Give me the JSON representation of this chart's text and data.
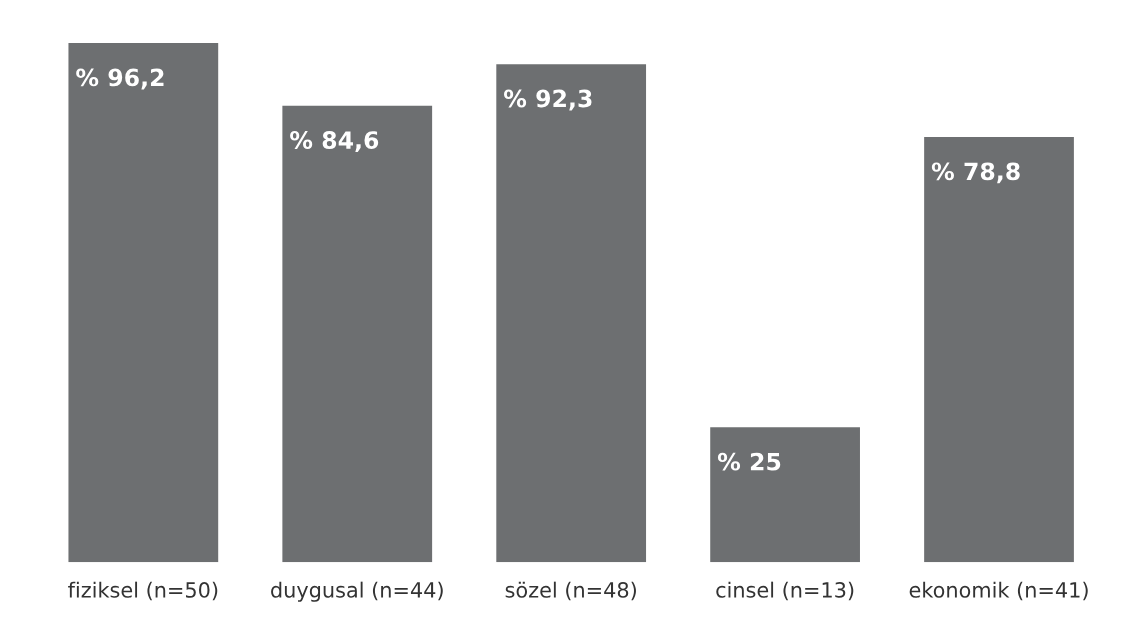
{
  "chart_data": {
    "type": "bar",
    "categories": [
      "fiziksel (n=50)",
      "duygusal (n=44)",
      "sözel (n=48)",
      "cinsel (n=13)",
      "ekonomik (n=41)"
    ],
    "values": [
      96.2,
      84.6,
      92.3,
      25,
      78.8
    ],
    "value_labels": [
      "% 96,2",
      "% 84,6",
      "% 92,3",
      "% 25",
      "% 78,8"
    ],
    "color": "#6d6f71",
    "grid": false,
    "legend": false
  }
}
